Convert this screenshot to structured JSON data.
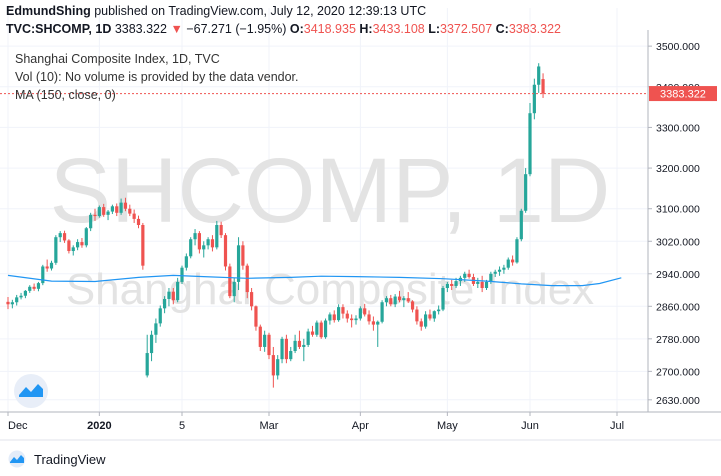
{
  "header": {
    "author": "EdmundShing",
    "published_text": "published on TradingView.com, July 12, 2020 12:39:13 UTC",
    "symbol": "TVC:SHCOMP, 1D",
    "last": "3383.322",
    "change_arrow": "▼",
    "change": "−67.271 (−1.95%)",
    "o_label": "O:",
    "o_val": "3418.935",
    "h_label": "H:",
    "h_val": "3433.108",
    "l_label": "L:",
    "l_val": "3372.507",
    "c_label": "C:",
    "c_val": "3383.322"
  },
  "legend": {
    "line1": "Shanghai Composite Index, 1D, TVC",
    "line2": "Vol (10): No volume is provided by the data vendor.",
    "line3": "MA (150, close, 0)"
  },
  "watermark": {
    "line1": "SHCOMP, 1D",
    "line2": "Shanghai Composite Index"
  },
  "footer": {
    "brand": "TradingView",
    "icon": "tradingview-logo-icon"
  },
  "colors": {
    "up": "#26a69a",
    "down": "#ef5350",
    "ma": "#2196f3",
    "price_tag": "#ef5350"
  },
  "chart_data": {
    "type": "candlestick",
    "ylim": [
      2600,
      3520
    ],
    "y_ticks": [
      2630,
      2700,
      2780,
      2860,
      2940,
      3020,
      3100,
      3200,
      3300,
      3400,
      3500
    ],
    "y_tick_labels": [
      "2630.000",
      "2700.000",
      "2780.000",
      "2860.000",
      "2940.000",
      "3020.000",
      "3100.000",
      "3200.000",
      "3300.000",
      "3400.000",
      "3500.000"
    ],
    "last_price_label": "3383.322",
    "last_price": 3383.322,
    "x_labels": [
      {
        "label": "Dec",
        "day": 0
      },
      {
        "label": "2020",
        "day": 21
      },
      {
        "label": "5",
        "day": 40
      },
      {
        "label": "Mar",
        "day": 60
      },
      {
        "label": "Apr",
        "day": 81
      },
      {
        "label": "May",
        "day": 101
      },
      {
        "label": "Jun",
        "day": 120
      },
      {
        "label": "Jul",
        "day": 140
      }
    ],
    "candles": [
      [
        2871,
        2883,
        2853,
        2865
      ],
      [
        2865,
        2876,
        2855,
        2870
      ],
      [
        2870,
        2888,
        2862,
        2882
      ],
      [
        2882,
        2893,
        2877,
        2886
      ],
      [
        2886,
        2900,
        2880,
        2898
      ],
      [
        2898,
        2912,
        2893,
        2908
      ],
      [
        2908,
        2916,
        2898,
        2903
      ],
      [
        2903,
        2920,
        2897,
        2917
      ],
      [
        2917,
        2962,
        2912,
        2958
      ],
      [
        2958,
        2975,
        2945,
        2953
      ],
      [
        2953,
        2972,
        2948,
        2967
      ],
      [
        2967,
        3035,
        2962,
        3030
      ],
      [
        3030,
        3045,
        3018,
        3040
      ],
      [
        3040,
        3046,
        3016,
        3022
      ],
      [
        3022,
        3025,
        2990,
        2996
      ],
      [
        2996,
        3010,
        2985,
        3005
      ],
      [
        3005,
        3025,
        2998,
        3018
      ],
      [
        3018,
        3028,
        3004,
        3010
      ],
      [
        3010,
        3055,
        3005,
        3052
      ],
      [
        3052,
        3090,
        3045,
        3085
      ],
      [
        3085,
        3100,
        3070,
        3082
      ],
      [
        3082,
        3108,
        3078,
        3104
      ],
      [
        3104,
        3112,
        3080,
        3085
      ],
      [
        3085,
        3097,
        3072,
        3093
      ],
      [
        3093,
        3110,
        3087,
        3106
      ],
      [
        3106,
        3113,
        3082,
        3090
      ],
      [
        3090,
        3125,
        3085,
        3115
      ],
      [
        3115,
        3127,
        3094,
        3100
      ],
      [
        3100,
        3110,
        3082,
        3088
      ],
      [
        3088,
        3098,
        3065,
        3075
      ],
      [
        3075,
        3083,
        3052,
        3060
      ],
      [
        3060,
        3065,
        2950,
        2960
      ],
      [
        2690,
        2790,
        2685,
        2745
      ],
      [
        2745,
        2800,
        2725,
        2790
      ],
      [
        2790,
        2830,
        2770,
        2818
      ],
      [
        2818,
        2862,
        2810,
        2855
      ],
      [
        2855,
        2885,
        2843,
        2878
      ],
      [
        2878,
        2905,
        2860,
        2896
      ],
      [
        2896,
        2905,
        2865,
        2875
      ],
      [
        2875,
        2930,
        2870,
        2920
      ],
      [
        2920,
        2960,
        2915,
        2955
      ],
      [
        2955,
        2990,
        2948,
        2983
      ],
      [
        2983,
        3030,
        2978,
        3025
      ],
      [
        3025,
        3050,
        3010,
        3040
      ],
      [
        3040,
        3045,
        2990,
        3000
      ],
      [
        3000,
        3020,
        2980,
        3010
      ],
      [
        3010,
        3030,
        3000,
        3025
      ],
      [
        3025,
        3035,
        2995,
        3005
      ],
      [
        3005,
        3070,
        3000,
        3060
      ],
      [
        3060,
        3068,
        3028,
        3035
      ],
      [
        3035,
        3040,
        2948,
        2958
      ],
      [
        2958,
        2965,
        2880,
        2885
      ],
      [
        2885,
        2930,
        2870,
        2920
      ],
      [
        2920,
        3030,
        2900,
        3010
      ],
      [
        3010,
        3020,
        2950,
        2960
      ],
      [
        2960,
        2965,
        2880,
        2895
      ],
      [
        2895,
        2905,
        2850,
        2860
      ],
      [
        2860,
        2862,
        2800,
        2810
      ],
      [
        2810,
        2815,
        2750,
        2760
      ],
      [
        2760,
        2800,
        2748,
        2790
      ],
      [
        2790,
        2795,
        2730,
        2740
      ],
      [
        2740,
        2760,
        2660,
        2690
      ],
      [
        2690,
        2740,
        2680,
        2730
      ],
      [
        2730,
        2785,
        2720,
        2780
      ],
      [
        2780,
        2790,
        2720,
        2730
      ],
      [
        2730,
        2760,
        2725,
        2750
      ],
      [
        2750,
        2790,
        2745,
        2775
      ],
      [
        2775,
        2800,
        2755,
        2760
      ],
      [
        2760,
        2780,
        2725,
        2765
      ],
      [
        2765,
        2805,
        2760,
        2798
      ],
      [
        2798,
        2812,
        2785,
        2790
      ],
      [
        2790,
        2825,
        2785,
        2820
      ],
      [
        2820,
        2825,
        2780,
        2784
      ],
      [
        2784,
        2830,
        2780,
        2825
      ],
      [
        2825,
        2845,
        2815,
        2840
      ],
      [
        2840,
        2850,
        2820,
        2826
      ],
      [
        2826,
        2865,
        2822,
        2858
      ],
      [
        2858,
        2865,
        2830,
        2842
      ],
      [
        2842,
        2850,
        2820,
        2830
      ],
      [
        2830,
        2840,
        2808,
        2826
      ],
      [
        2826,
        2838,
        2815,
        2830
      ],
      [
        2830,
        2860,
        2825,
        2855
      ],
      [
        2855,
        2866,
        2835,
        2840
      ],
      [
        2840,
        2850,
        2815,
        2823
      ],
      [
        2823,
        2835,
        2800,
        2815
      ],
      [
        2815,
        2825,
        2760,
        2822
      ],
      [
        2822,
        2875,
        2818,
        2870
      ],
      [
        2870,
        2885,
        2860,
        2880
      ],
      [
        2880,
        2888,
        2860,
        2865
      ],
      [
        2865,
        2890,
        2858,
        2884
      ],
      [
        2884,
        2898,
        2870,
        2875
      ],
      [
        2875,
        2885,
        2858,
        2880
      ],
      [
        2880,
        2895,
        2868,
        2872
      ],
      [
        2872,
        2875,
        2845,
        2852
      ],
      [
        2852,
        2860,
        2815,
        2823
      ],
      [
        2823,
        2830,
        2800,
        2810
      ],
      [
        2810,
        2848,
        2805,
        2840
      ],
      [
        2840,
        2852,
        2825,
        2830
      ],
      [
        2830,
        2850,
        2822,
        2848
      ],
      [
        2848,
        2862,
        2840,
        2852
      ],
      [
        2852,
        2910,
        2848,
        2905
      ],
      [
        2905,
        2920,
        2895,
        2915
      ],
      [
        2915,
        2925,
        2900,
        2910
      ],
      [
        2910,
        2930,
        2905,
        2922
      ],
      [
        2922,
        2935,
        2910,
        2930
      ],
      [
        2930,
        2945,
        2920,
        2940
      ],
      [
        2940,
        2950,
        2928,
        2932
      ],
      [
        2932,
        2940,
        2910,
        2915
      ],
      [
        2915,
        2930,
        2905,
        2920
      ],
      [
        2920,
        2935,
        2895,
        2905
      ],
      [
        2905,
        2925,
        2900,
        2920
      ],
      [
        2920,
        2945,
        2915,
        2940
      ],
      [
        2940,
        2950,
        2932,
        2945
      ],
      [
        2945,
        2958,
        2935,
        2950
      ],
      [
        2950,
        2962,
        2940,
        2955
      ],
      [
        2955,
        2980,
        2950,
        2975
      ],
      [
        2975,
        2985,
        2960,
        2968
      ],
      [
        2968,
        3030,
        2965,
        3025
      ],
      [
        3025,
        3100,
        3020,
        3095
      ],
      [
        3095,
        3200,
        3090,
        3185
      ],
      [
        3185,
        3360,
        3180,
        3335
      ],
      [
        3335,
        3420,
        3320,
        3405
      ],
      [
        3405,
        3458,
        3385,
        3450
      ],
      [
        3418.935,
        3433.108,
        3372.507,
        3383.322
      ]
    ],
    "ma_150": [
      [
        0,
        2936
      ],
      [
        10,
        2922
      ],
      [
        20,
        2921
      ],
      [
        30,
        2931
      ],
      [
        38,
        2936
      ],
      [
        45,
        2933
      ],
      [
        55,
        2929
      ],
      [
        65,
        2931
      ],
      [
        72,
        2934
      ],
      [
        80,
        2933
      ],
      [
        90,
        2931
      ],
      [
        100,
        2928
      ],
      [
        110,
        2922
      ],
      [
        118,
        2915
      ],
      [
        125,
        2911
      ],
      [
        132,
        2911
      ],
      [
        136,
        2916
      ],
      [
        141,
        2930
      ]
    ]
  }
}
